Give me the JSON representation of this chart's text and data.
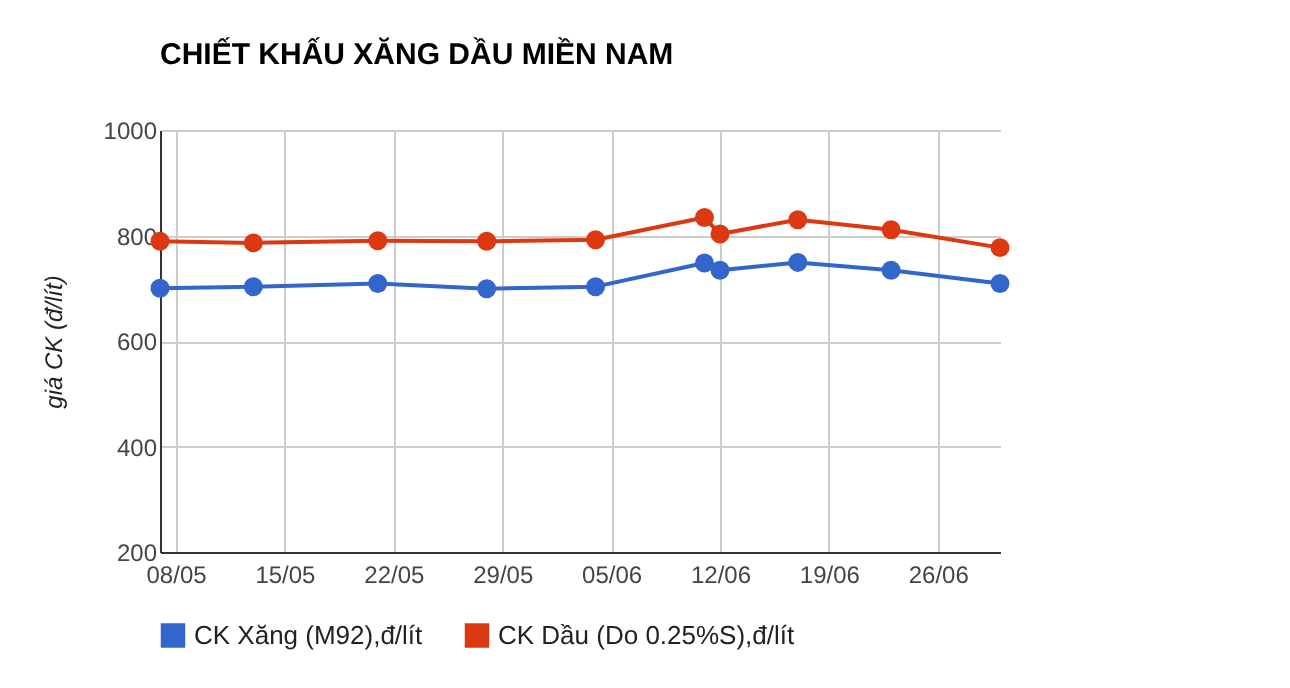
{
  "chart_data": {
    "type": "line",
    "title": "CHIẾT KHẤU XĂNG DẦU MIỀN NAM",
    "ylabel": "giá CK (đ/lít)",
    "x": [
      "--05-07",
      "--05-13",
      "--05-21",
      "--05-28",
      "--06-04",
      "--06-11",
      "--06-12",
      "--06-17",
      "--06-23",
      "--06-30"
    ],
    "series": [
      {
        "name": "CK Xăng (M92),đ/lít",
        "color": "#3366cc",
        "values": [
          700,
          703,
          709,
          699,
          703,
          748,
          734,
          749,
          734,
          709
        ]
      },
      {
        "name": "CK Dầu (Do 0.25%S),đ/lít",
        "color": "#dc3912",
        "values": [
          789,
          786,
          790,
          789,
          792,
          834,
          803,
          830,
          811,
          777
        ]
      }
    ],
    "xlim": [
      "--05-07",
      "--06-30"
    ],
    "xticks": [
      {
        "value": "--05-08",
        "label": "08/05"
      },
      {
        "value": "--05-15",
        "label": "15/05"
      },
      {
        "value": "--05-22",
        "label": "22/05"
      },
      {
        "value": "--05-29",
        "label": "29/05"
      },
      {
        "value": "--06-05",
        "label": "05/06"
      },
      {
        "value": "--06-12",
        "label": "12/06"
      },
      {
        "value": "--06-19",
        "label": "19/06"
      },
      {
        "value": "--06-26",
        "label": "26/06"
      }
    ],
    "ylim": [
      200,
      1000
    ],
    "yticks": [
      200,
      400,
      600,
      800,
      1000
    ],
    "grid": true,
    "legend": "bottom",
    "marker": "circle",
    "line_style": "solid"
  }
}
